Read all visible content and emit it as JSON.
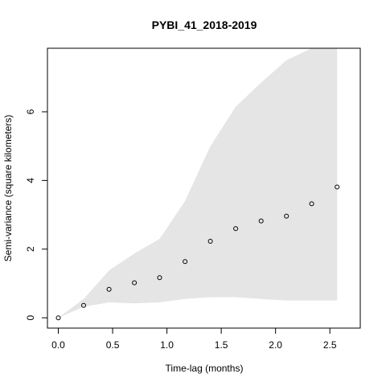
{
  "chart_data": {
    "type": "scatter",
    "title": "PYBI_41_2018-2019",
    "xlabel": "Time-lag (months)",
    "ylabel": "Semi-variance (square kilometers)",
    "xlim": [
      -0.1,
      2.78
    ],
    "ylim": [
      -0.3,
      7.85
    ],
    "grid": false,
    "x_ticks": [
      {
        "value": 0.0,
        "label": "0.0"
      },
      {
        "value": 0.5,
        "label": "0.5"
      },
      {
        "value": 1.0,
        "label": "1.0"
      },
      {
        "value": 1.5,
        "label": "1.5"
      },
      {
        "value": 2.0,
        "label": "2.0"
      },
      {
        "value": 2.5,
        "label": "2.5"
      }
    ],
    "y_ticks": [
      {
        "value": 0,
        "label": "0"
      },
      {
        "value": 2,
        "label": "2"
      },
      {
        "value": 4,
        "label": "4"
      },
      {
        "value": 6,
        "label": "6"
      }
    ],
    "series": [
      {
        "x": [
          0.0,
          0.233,
          0.467,
          0.7,
          0.933,
          1.167,
          1.4,
          1.633,
          1.867,
          2.1,
          2.333,
          2.567
        ],
        "y": [
          0.0,
          0.36,
          0.83,
          1.02,
          1.17,
          1.64,
          2.23,
          2.6,
          2.82,
          2.96,
          3.32,
          3.81
        ]
      }
    ],
    "envelope": {
      "x": [
        0.0,
        0.233,
        0.467,
        0.7,
        0.933,
        1.167,
        1.4,
        1.633,
        1.867,
        2.1,
        2.333,
        2.567
      ],
      "upper": [
        0.0,
        0.55,
        1.38,
        1.87,
        2.3,
        3.4,
        5.0,
        6.15,
        6.85,
        7.5,
        8.5,
        9.2
      ],
      "lower": [
        0.0,
        0.32,
        0.45,
        0.42,
        0.45,
        0.55,
        0.6,
        0.6,
        0.55,
        0.5,
        0.5,
        0.5
      ]
    },
    "colors": {
      "envelope": "#e5e5e5",
      "points": "#000000",
      "axes": "#000000"
    }
  }
}
